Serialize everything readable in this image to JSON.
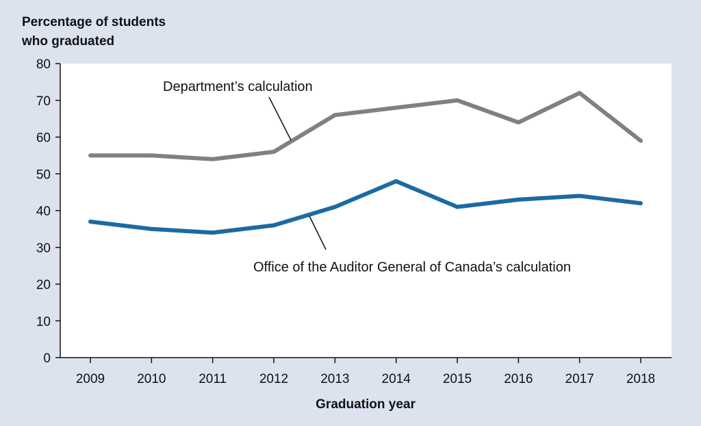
{
  "chart_data": {
    "type": "line",
    "ylabel_lines": [
      "Percentage of students",
      "who graduated"
    ],
    "xlabel": "Graduation year",
    "categories": [
      "2009",
      "2010",
      "2011",
      "2012",
      "2013",
      "2014",
      "2015",
      "2016",
      "2017",
      "2018"
    ],
    "ylim": [
      0,
      80
    ],
    "yticks": [
      0,
      10,
      20,
      30,
      40,
      50,
      60,
      70,
      80
    ],
    "grid": false,
    "series": [
      {
        "name": "Department’s calculation",
        "color": "#808080",
        "values": [
          55,
          55,
          54,
          56,
          66,
          68,
          70,
          64,
          72,
          59
        ]
      },
      {
        "name": "Office of the Auditor General of Canada’s calculation",
        "color": "#1b6aa3",
        "values": [
          37,
          35,
          34,
          36,
          41,
          48,
          41,
          43,
          44,
          42
        ]
      }
    ]
  }
}
